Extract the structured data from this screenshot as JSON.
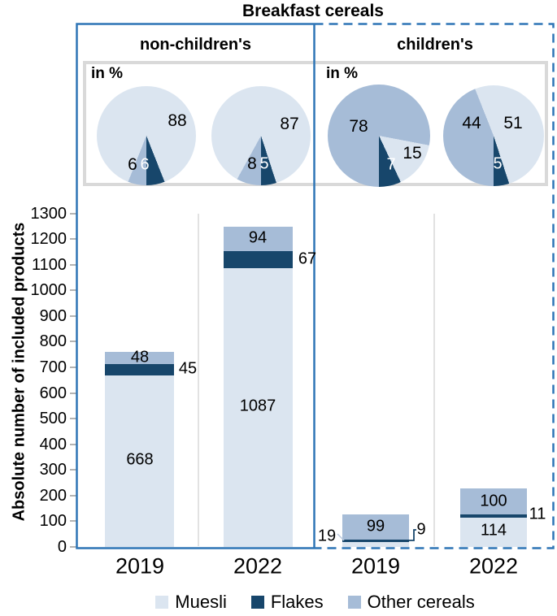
{
  "title": "Breakfast cereals",
  "pie_unit_label": "in %",
  "panels": [
    {
      "label": "non-children's",
      "border_style": "solid"
    },
    {
      "label": "children's",
      "border_style": "dashed"
    }
  ],
  "axis": {
    "ylabel": "Absolute number of included products",
    "ticks": [
      0,
      100,
      200,
      300,
      400,
      500,
      600,
      700,
      800,
      900,
      1000,
      1100,
      1200,
      1300
    ],
    "ylim": [
      0,
      1300
    ]
  },
  "legend": [
    {
      "label": "Muesli",
      "key": "muesli"
    },
    {
      "label": "Flakes",
      "key": "flakes"
    },
    {
      "label": "Other cereals",
      "key": "other_cereals"
    }
  ],
  "colors": {
    "muesli": "#dbe5f0",
    "flakes": "#17466b",
    "other_cereals": "#a6bcd7",
    "border_blue": "#2e75b6",
    "frame_gray": "#d9d9d9"
  },
  "chart_data": {
    "pies": {
      "type": "pie",
      "unit": "in %",
      "groups": [
        {
          "group": "non-children's",
          "year": "2019",
          "muesli": 88,
          "flakes": 6,
          "other_cereals": 6
        },
        {
          "group": "non-children's",
          "year": "2022",
          "muesli": 87,
          "flakes": 5,
          "other_cereals": 8
        },
        {
          "group": "children's",
          "year": "2019",
          "muesli": 15,
          "flakes": 7,
          "other_cereals": 78
        },
        {
          "group": "children's",
          "year": "2022",
          "muesli": 51,
          "flakes": 5,
          "other_cereals": 44
        }
      ]
    },
    "bars": {
      "type": "bar",
      "stacked": true,
      "categories": [
        "2019",
        "2022",
        "2019",
        "2022"
      ],
      "groups": [
        "non-children's",
        "non-children's",
        "children's",
        "children's"
      ],
      "series": [
        {
          "name": "Muesli",
          "values": [
            668,
            1087,
            19,
            114
          ]
        },
        {
          "name": "Flakes",
          "values": [
            45,
            67,
            9,
            11
          ]
        },
        {
          "name": "Other cereals",
          "values": [
            48,
            94,
            99,
            100
          ]
        }
      ],
      "ylabel": "Absolute number of included products",
      "ylim": [
        0,
        1300
      ],
      "grid": false,
      "legend_position": "bottom"
    }
  }
}
